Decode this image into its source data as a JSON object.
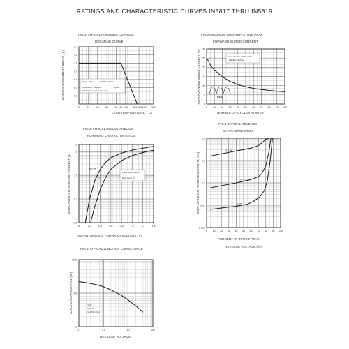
{
  "title": "RATINGS AND CHARACTERISTIC CURVES IN5817 THRU IN5819",
  "colors": {
    "ink": "#222222",
    "grid_major": "#666666",
    "grid_minor": "#b5b5b5"
  },
  "chart_data": [
    {
      "id": "fig1",
      "type": "line",
      "title": "FIG.1-TYPICAL FORWARD CURRENT",
      "subtitle": "DERATING CURVE",
      "xlabel": "LEAD TEMPERATURE, (     C)",
      "ylabel": "AVERAGE FORWARD CURRENT, (A)",
      "xlim": [
        0,
        160
      ],
      "ylim": [
        0,
        1.4
      ],
      "x_scale": "linear",
      "y_scale": "linear",
      "x_ticks": [
        0,
        20,
        40,
        60,
        80,
        90,
        100,
        120,
        130,
        140,
        160
      ],
      "x_tick_labels": [
        "0",
        "20",
        "40",
        "60",
        "80",
        "90",
        "100",
        "120",
        "130",
        "140",
        "160"
      ],
      "y_ticks": [
        0.2,
        0.4,
        0.6,
        0.8,
        1.0,
        1.2,
        1.4
      ],
      "y_tick_labels": [
        "0.2",
        "0.4",
        "0.6",
        "0.8",
        "1.0",
        "1.2",
        "1.4"
      ],
      "grid": true,
      "series": [
        {
          "x": [
            0,
            90,
            125
          ],
          "y": [
            1.0,
            1.0,
            0.0
          ]
        }
      ],
      "annotations": [
        "Single Phase",
        "Half Wave 60Hz",
        "Inductive or Resistive",
        "Load",
        "0.375\"(9.5mm) Lead Length"
      ]
    },
    {
      "id": "fig2",
      "type": "line",
      "title": "FIG.2-MAXIMUM NON-REPETITIVE PEAK",
      "subtitle": "FORWARD SURGE CURRENT",
      "xlabel": "NUMBER OF CYCLES AT 60 Hz",
      "ylabel": "PEAK FORWARD SURGE CURRENT, (A)",
      "xlim": [
        0,
        100
      ],
      "ylim": [
        0,
        30
      ],
      "x_scale": "linear",
      "y_scale": "linear",
      "x_ticks": [
        0,
        10,
        20,
        30,
        40,
        50,
        60,
        70,
        80,
        90,
        100
      ],
      "x_tick_labels": [
        "0",
        "10",
        "20",
        "30",
        "40",
        "50",
        "60",
        "70",
        "80",
        "90",
        "100"
      ],
      "y_ticks": [
        0,
        5,
        10,
        15,
        20,
        25,
        30
      ],
      "y_tick_labels": [
        "0",
        "5",
        "10",
        "15",
        "20",
        "25",
        "30"
      ],
      "grid": true,
      "series": [
        {
          "x": [
            1,
            5,
            10,
            20,
            30,
            40,
            50,
            60,
            70,
            80,
            90,
            100
          ],
          "y": [
            24.5,
            21,
            18.5,
            14.8,
            12.3,
            10.6,
            9.4,
            8.5,
            7.9,
            7.4,
            7.0,
            6.7
          ]
        }
      ],
      "annotations": [
        "8.3ms Single Half Sine Wave",
        "(JEDEC Method)",
        "8.3ms"
      ]
    },
    {
      "id": "fig3",
      "type": "line",
      "title": "FIG.3-TYPICAL INSTANTANEOUS",
      "subtitle": "FORWARD CHARACTERISTICS",
      "xlabel": "INSTANTANEOUS FORWARD VOLTAGE,(V)",
      "ylabel": "INSTANTANEOUS FORWARD CURRENT, (A)",
      "xlim": [
        0,
        1.4
      ],
      "ylim": [
        0.01,
        20
      ],
      "x_scale": "linear",
      "y_scale": "log",
      "x_ticks": [
        0,
        0.2,
        0.4,
        0.6,
        0.8,
        1.0,
        1.2,
        1.4
      ],
      "x_tick_labels": [
        "0",
        "0.2",
        "0.4",
        "0.6",
        "0.8",
        "1.0",
        "1.2",
        "1.4"
      ],
      "y_ticks": [
        0.01,
        0.1,
        1,
        10,
        20
      ],
      "y_tick_labels": [
        "0.01",
        "0.1",
        "1.0",
        "10",
        "20"
      ],
      "grid": true,
      "series": [
        {
          "name": "Tj=125",
          "x": [
            0.12,
            0.2,
            0.3,
            0.4,
            0.5,
            0.6,
            0.8,
            1.0,
            1.2,
            1.4
          ],
          "y": [
            0.01,
            0.1,
            0.6,
            1.8,
            3.5,
            5.5,
            8.7,
            11.5,
            14,
            16.5
          ]
        },
        {
          "name": "Tj=25",
          "x": [
            0.22,
            0.3,
            0.4,
            0.5,
            0.6,
            0.8,
            1.0,
            1.2,
            1.4
          ],
          "y": [
            0.01,
            0.05,
            0.25,
            0.8,
            1.8,
            4.2,
            6.8,
            9.2,
            11.5
          ]
        }
      ],
      "annotations": [
        "Pulse Width 300us",
        "Duty Cycle 2%"
      ]
    },
    {
      "id": "fig4",
      "type": "line",
      "title": "FIG.4-TYPICAL REVERSE",
      "subtitle": "CHARACTERISTICS",
      "xlabel": "PERCENT OF RATED PEAK",
      "xlabel2": "REVERSE VOLTAGE,(%)",
      "ylabel": "INSTANTANEOUS REVERSE CURRENT, (mA)",
      "xlim": [
        0,
        100
      ],
      "ylim": [
        0.001,
        10
      ],
      "x_scale": "linear",
      "y_scale": "log",
      "x_ticks": [
        0,
        10,
        20,
        30,
        40,
        50,
        60,
        70,
        80,
        90,
        100
      ],
      "x_tick_labels": [
        "0",
        "10",
        "20",
        "30",
        "40",
        "50",
        "60",
        "70",
        "80",
        "90",
        "100"
      ],
      "y_ticks": [
        0.001,
        0.01,
        0.1,
        1,
        10
      ],
      "y_tick_labels": [
        "0.001",
        "0.01",
        "0.1",
        "1.0",
        "10"
      ],
      "grid": true,
      "series": [
        {
          "name": "Tj=125",
          "x": [
            5,
            20,
            40,
            60,
            70,
            75,
            80,
            85
          ],
          "y": [
            1.6,
            2.0,
            2.7,
            3.6,
            4.7,
            6.3,
            9.0,
            10
          ]
        },
        {
          "name": "Tj=75",
          "x": [
            5,
            20,
            40,
            60,
            70,
            75,
            80,
            84,
            87
          ],
          "y": [
            0.06,
            0.075,
            0.1,
            0.14,
            0.19,
            0.27,
            0.6,
            2.2,
            10
          ]
        },
        {
          "name": "Tj=25",
          "x": [
            5,
            20,
            40,
            55,
            65,
            72,
            78,
            82,
            86,
            89
          ],
          "y": [
            0.0065,
            0.0075,
            0.009,
            0.011,
            0.016,
            0.024,
            0.045,
            0.12,
            1.0,
            10
          ]
        }
      ]
    },
    {
      "id": "fig5",
      "type": "line",
      "title": "FIG.5-TYPICAL JUNCTION CAPACITANCE",
      "xlabel": "REVERSE VOLTAGE",
      "ylabel": "JUNCTION CAPACITANCE,(pF)",
      "xlim": [
        0.1,
        100
      ],
      "ylim": [
        10,
        1000
      ],
      "x_scale": "log",
      "y_scale": "log",
      "x_ticks": [
        0.1,
        1,
        10,
        100
      ],
      "x_tick_labels": [
        "0.1",
        "1.0",
        "10",
        "100"
      ],
      "y_ticks": [
        10,
        100,
        1000
      ],
      "y_tick_labels": [
        "10",
        "100",
        "1000"
      ],
      "grid": true,
      "series": [
        {
          "x": [
            0.1,
            0.2,
            0.5,
            1,
            2,
            5,
            10,
            20,
            40
          ],
          "y": [
            220,
            205,
            180,
            155,
            125,
            88,
            62,
            42,
            27
          ]
        }
      ],
      "annotations": [
        "Tj=25",
        "f=1MHz",
        "Vsig=50mVp-p"
      ]
    }
  ]
}
